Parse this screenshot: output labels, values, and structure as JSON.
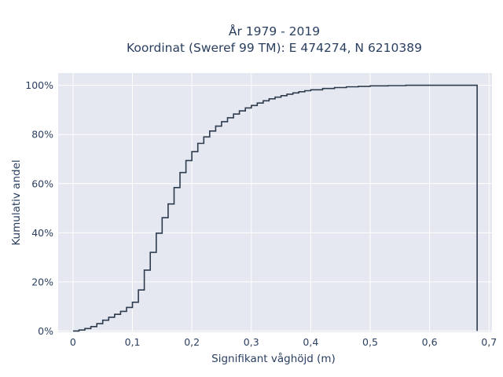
{
  "chart_data": {
    "type": "line",
    "subtype": "ecdf-step",
    "title_line1": "År 1979 - 2019",
    "title_line2": "Koordinat (Sweref 99 TM): E 474274, N 6210389",
    "xlabel": "Signifikant våghöjd (m)",
    "ylabel": "Kumulativ andel",
    "xlim": [
      -0.025,
      0.705
    ],
    "ylim": [
      -0.005,
      1.05
    ],
    "x_ticks": [
      0,
      0.1,
      0.2,
      0.3,
      0.4,
      0.5,
      0.6,
      0.7
    ],
    "x_tick_labels": [
      "0",
      "0,1",
      "0,2",
      "0,3",
      "0,4",
      "0,5",
      "0,6",
      "0,7"
    ],
    "y_ticks": [
      0,
      0.2,
      0.4,
      0.6,
      0.8,
      1.0
    ],
    "y_tick_labels": [
      "0%",
      "20%",
      "40%",
      "60%",
      "80%",
      "100%"
    ],
    "grid": true,
    "colors": {
      "plot_bg": "#e5e8f0",
      "grid": "#ffffff",
      "line": "#2d3b4e",
      "text": "#2a3f5f"
    },
    "series": [
      {
        "x": [
          0.0,
          0.01,
          0.02,
          0.03,
          0.04,
          0.05,
          0.06,
          0.07,
          0.08,
          0.09,
          0.1,
          0.11,
          0.12,
          0.13,
          0.14,
          0.15,
          0.16,
          0.17,
          0.18,
          0.19,
          0.2,
          0.21,
          0.22,
          0.23,
          0.24,
          0.25,
          0.26,
          0.27,
          0.28,
          0.29,
          0.3,
          0.31,
          0.32,
          0.33,
          0.34,
          0.35,
          0.36,
          0.37,
          0.38,
          0.39,
          0.4,
          0.42,
          0.44,
          0.46,
          0.48,
          0.5,
          0.53,
          0.56,
          0.6,
          0.64,
          0.68
        ],
        "y": [
          0.0,
          0.004,
          0.01,
          0.018,
          0.03,
          0.044,
          0.056,
          0.068,
          0.08,
          0.096,
          0.117,
          0.167,
          0.248,
          0.32,
          0.398,
          0.461,
          0.517,
          0.584,
          0.645,
          0.694,
          0.73,
          0.764,
          0.79,
          0.814,
          0.834,
          0.852,
          0.868,
          0.883,
          0.896,
          0.908,
          0.918,
          0.928,
          0.937,
          0.945,
          0.952,
          0.958,
          0.964,
          0.969,
          0.974,
          0.978,
          0.982,
          0.987,
          0.991,
          0.994,
          0.996,
          0.998,
          0.999,
          1.0,
          1.0,
          1.0,
          0.0
        ]
      }
    ]
  }
}
